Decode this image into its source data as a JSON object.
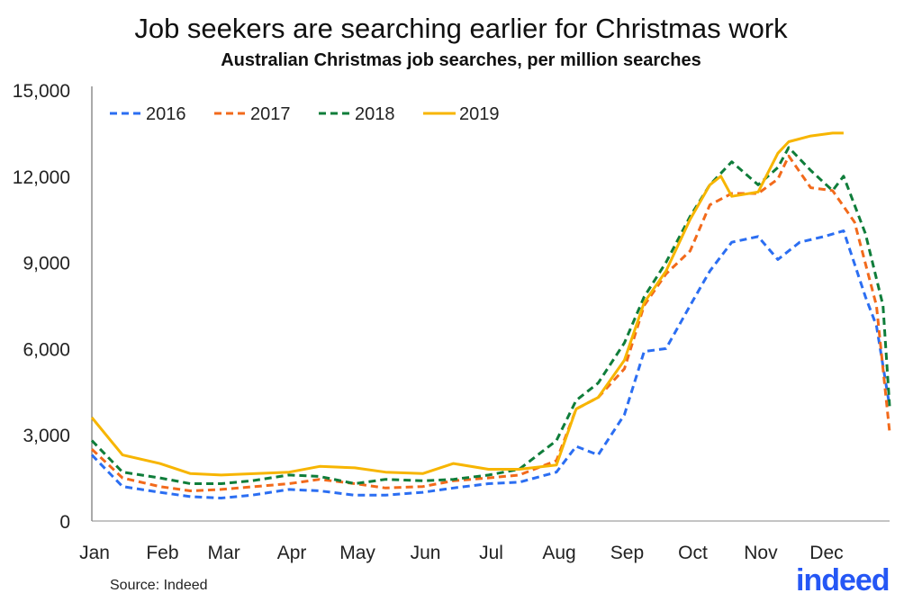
{
  "chart_data": {
    "type": "line",
    "title": "Job seekers are searching earlier for Christmas work",
    "subtitle": "Australian Christmas job searches, per million searches",
    "xlabel": "",
    "ylabel": "",
    "ylim": [
      0,
      15000
    ],
    "yticks": [
      "0",
      "3,000",
      "6,000",
      "9,000",
      "12,000",
      "15,000"
    ],
    "ytick_values": [
      0,
      3000,
      6000,
      9000,
      12000,
      15000
    ],
    "xticks": [
      "Jan",
      "Feb",
      "Mar",
      "Apr",
      "May",
      "Jun",
      "Jul",
      "Aug",
      "Sep",
      "Oct",
      "Nov",
      "Dec"
    ],
    "grid": false,
    "legend_position": "top-left",
    "series": [
      {
        "name": "2016",
        "color": "#2b6ef2",
        "style": "dashed",
        "x": [
          "01-01",
          "01-15",
          "02-01",
          "02-15",
          "03-01",
          "03-15",
          "04-01",
          "04-15",
          "05-01",
          "05-15",
          "06-01",
          "06-15",
          "07-01",
          "07-15",
          "08-01",
          "08-10",
          "08-20",
          "09-01",
          "09-10",
          "09-20",
          "10-01",
          "10-10",
          "10-20",
          "11-01",
          "11-10",
          "11-20",
          "12-01",
          "12-10",
          "12-20",
          "12-25",
          "12-31"
        ],
        "values": [
          2300,
          1200,
          1000,
          850,
          800,
          900,
          1100,
          1050,
          900,
          900,
          1000,
          1150,
          1300,
          1350,
          1700,
          2600,
          2300,
          3700,
          5900,
          6000,
          7500,
          8700,
          9700,
          9900,
          9100,
          9700,
          9900,
          10100,
          7800,
          6800,
          4000
        ]
      },
      {
        "name": "2017",
        "color": "#f26a1b",
        "style": "dashed",
        "x": [
          "01-01",
          "01-15",
          "02-01",
          "02-15",
          "03-01",
          "04-01",
          "04-15",
          "05-01",
          "05-15",
          "06-01",
          "06-15",
          "07-01",
          "07-15",
          "08-01",
          "08-10",
          "08-20",
          "09-01",
          "09-10",
          "09-20",
          "10-01",
          "10-10",
          "10-20",
          "11-01",
          "11-10",
          "11-15",
          "11-25",
          "12-05",
          "12-15",
          "12-25",
          "12-31"
        ],
        "values": [
          2500,
          1500,
          1200,
          1050,
          1100,
          1300,
          1450,
          1300,
          1150,
          1200,
          1400,
          1500,
          1600,
          2100,
          3900,
          4300,
          5300,
          7500,
          8600,
          9400,
          11000,
          11400,
          11400,
          11900,
          12700,
          11600,
          11500,
          10400,
          7500,
          3100
        ]
      },
      {
        "name": "2018",
        "color": "#0f7d3a",
        "style": "dashed",
        "x": [
          "01-01",
          "01-15",
          "02-01",
          "02-15",
          "03-01",
          "03-15",
          "04-01",
          "04-15",
          "05-01",
          "05-15",
          "06-01",
          "06-15",
          "07-01",
          "07-15",
          "08-01",
          "08-10",
          "08-20",
          "09-01",
          "09-10",
          "09-20",
          "10-01",
          "10-10",
          "10-20",
          "11-01",
          "11-10",
          "11-15",
          "11-25",
          "12-05",
          "12-10",
          "12-20",
          "12-28",
          "12-31"
        ],
        "values": [
          2800,
          1700,
          1500,
          1300,
          1300,
          1400,
          1600,
          1550,
          1300,
          1450,
          1400,
          1450,
          1600,
          1800,
          2800,
          4200,
          4800,
          6200,
          7800,
          9000,
          10600,
          11700,
          12500,
          11700,
          12300,
          13000,
          12200,
          11500,
          12000,
          10000,
          7500,
          4000
        ]
      },
      {
        "name": "2019",
        "color": "#f7b500",
        "style": "solid",
        "x": [
          "01-01",
          "01-15",
          "02-01",
          "02-15",
          "03-01",
          "04-01",
          "04-15",
          "05-01",
          "05-15",
          "06-01",
          "06-15",
          "07-01",
          "07-15",
          "08-01",
          "08-10",
          "08-20",
          "09-01",
          "09-10",
          "09-20",
          "10-01",
          "10-10",
          "10-15",
          "10-20",
          "11-01",
          "11-10",
          "11-15",
          "11-25",
          "12-05",
          "12-10"
        ],
        "values": [
          3600,
          2300,
          2000,
          1650,
          1600,
          1700,
          1900,
          1850,
          1700,
          1650,
          2000,
          1800,
          1800,
          1950,
          3900,
          4300,
          5600,
          7600,
          8700,
          10500,
          11700,
          12000,
          11300,
          11450,
          12800,
          13200,
          13400,
          13500,
          13500
        ]
      }
    ]
  },
  "footer": {
    "source": "Source: Indeed",
    "logo": "indeed"
  }
}
